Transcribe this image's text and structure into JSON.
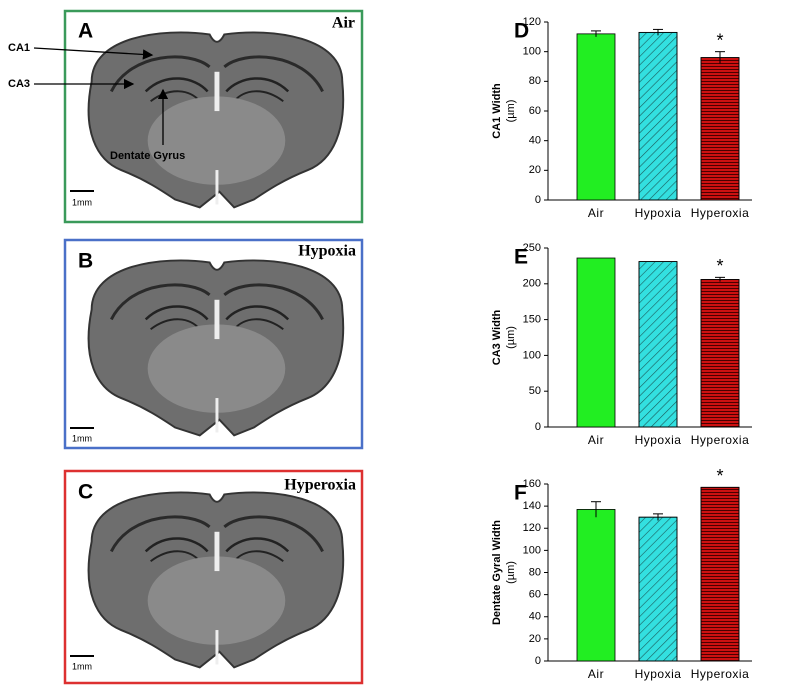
{
  "image_panels": [
    {
      "letter": "A",
      "condition": "Air",
      "scale_bar": "1mm",
      "annotations": [
        "CA1",
        "CA3",
        "Dentate Gyrus"
      ]
    },
    {
      "letter": "B",
      "condition": "Hypoxia",
      "scale_bar": "1mm"
    },
    {
      "letter": "C",
      "condition": "Hyperoxia",
      "scale_bar": "1mm"
    }
  ],
  "chart_data": [
    {
      "type": "bar",
      "panel": "D",
      "y_label": "CA1 Width",
      "y_unit": "(µm)",
      "categories": [
        "Air",
        "Hypoxia",
        "Hyperoxia"
      ],
      "values": [
        112,
        113,
        96
      ],
      "errors": [
        2,
        2,
        4
      ],
      "significance_labels": [
        null,
        null,
        "*"
      ],
      "colors": [
        "#22ee22",
        "#33e0e0",
        "#cc1111"
      ],
      "patterns": [
        "solid",
        "diagonal",
        "horizontal"
      ],
      "ylim": [
        0,
        120
      ],
      "yticks": [
        0,
        20,
        40,
        60,
        80,
        100,
        120
      ]
    },
    {
      "type": "bar",
      "panel": "E",
      "y_label": "CA3 Width",
      "y_unit": "(µm)",
      "categories": [
        "Air",
        "Hypoxia",
        "Hyperoxia"
      ],
      "values": [
        236,
        231,
        206
      ],
      "errors": [
        0,
        0,
        3
      ],
      "significance_labels": [
        null,
        null,
        "*"
      ],
      "colors": [
        "#22ee22",
        "#33e0e0",
        "#cc1111"
      ],
      "patterns": [
        "solid",
        "diagonal",
        "horizontal"
      ],
      "ylim": [
        0,
        250
      ],
      "yticks": [
        0,
        50,
        100,
        150,
        200,
        250
      ]
    },
    {
      "type": "bar",
      "panel": "F",
      "y_label": "Dentate Gyral Width",
      "y_unit": "(µm)",
      "categories": [
        "Air",
        "Hypoxia",
        "Hyperoxia"
      ],
      "values": [
        137,
        130,
        157
      ],
      "errors": [
        7,
        3,
        0
      ],
      "significance_labels": [
        null,
        null,
        "*"
      ],
      "colors": [
        "#22ee22",
        "#33e0e0",
        "#cc1111"
      ],
      "patterns": [
        "solid",
        "diagonal",
        "horizontal"
      ],
      "ylim": [
        0,
        160
      ],
      "yticks": [
        0,
        20,
        40,
        60,
        80,
        100,
        120,
        140,
        160
      ]
    }
  ]
}
